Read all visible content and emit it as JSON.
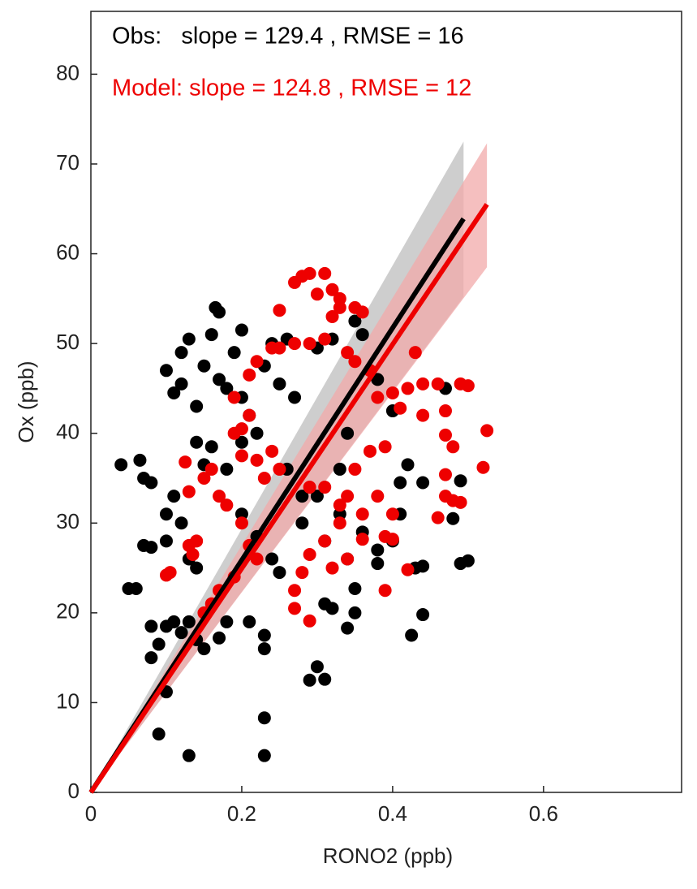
{
  "chart_data": {
    "type": "scatter",
    "xlabel": "RONO2 (ppb)",
    "ylabel": "Ox (ppb)",
    "annotations": [
      {
        "text": "Obs:   slope = 129.4 , RMSE = 16",
        "color": "#000000"
      },
      {
        "text": "Model: slope = 124.8 , RMSE = 12",
        "color": "#ee0000"
      }
    ],
    "xlim": [
      0,
      0.783
    ],
    "ylim": [
      0,
      87
    ],
    "xticks": [
      0,
      0.2,
      0.4,
      0.6
    ],
    "yticks": [
      0,
      10,
      20,
      30,
      40,
      50,
      60,
      70,
      80
    ],
    "grid": false,
    "series": [
      {
        "color": "#000000",
        "band_color": "#bdbdbd",
        "x": [
          0.04,
          0.065,
          0.07,
          0.08,
          0.05,
          0.06,
          0.07,
          0.08,
          0.08,
          0.08,
          0.09,
          0.1,
          0.09,
          0.13,
          0.1,
          0.11,
          0.12,
          0.13,
          0.15,
          0.14,
          0.17,
          0.18,
          0.1,
          0.11,
          0.12,
          0.1,
          0.13,
          0.14,
          0.1,
          0.11,
          0.12,
          0.13,
          0.12,
          0.14,
          0.15,
          0.16,
          0.17,
          0.165,
          0.2,
          0.19,
          0.17,
          0.18,
          0.2,
          0.21,
          0.14,
          0.15,
          0.16,
          0.18,
          0.2,
          0.22,
          0.2,
          0.22,
          0.24,
          0.25,
          0.23,
          0.24,
          0.26,
          0.25,
          0.27,
          0.21,
          0.23,
          0.23,
          0.23,
          0.23,
          0.29,
          0.3,
          0.31,
          0.31,
          0.32,
          0.34,
          0.35,
          0.35,
          0.34,
          0.36,
          0.38,
          0.38,
          0.4,
          0.41,
          0.42,
          0.41,
          0.43,
          0.44,
          0.425,
          0.44,
          0.48,
          0.49,
          0.49,
          0.5,
          0.44,
          0.47,
          0.34,
          0.36,
          0.35,
          0.3,
          0.32,
          0.26,
          0.28,
          0.3,
          0.33,
          0.28,
          0.31,
          0.33,
          0.4,
          0.38
        ],
        "values": [
          36.5,
          37,
          35,
          34.5,
          22.7,
          22.7,
          27.5,
          27.3,
          18.5,
          15,
          16.5,
          11.2,
          6.5,
          4.1,
          18.5,
          19,
          17.8,
          19,
          16,
          17,
          17.2,
          19,
          31,
          33,
          30,
          28,
          26,
          25,
          47,
          44.5,
          49,
          50.5,
          45.5,
          43,
          47.5,
          51,
          53.5,
          54,
          51.5,
          49,
          46,
          45,
          44,
          42,
          39,
          36.5,
          38.5,
          36,
          39,
          40,
          31,
          28.5,
          26,
          24.5,
          47.5,
          50,
          50.5,
          45.5,
          44,
          19,
          16,
          17.5,
          8.3,
          4.1,
          12.5,
          14,
          12.6,
          21,
          20.5,
          18.3,
          20,
          22.7,
          26,
          29,
          25.5,
          27,
          28,
          34.5,
          36.5,
          31,
          25,
          19.8,
          17.5,
          25.2,
          30.5,
          34.7,
          25.5,
          25.8,
          34.5,
          45,
          40,
          51,
          52.5,
          49.5,
          50.5,
          36,
          33,
          33,
          36,
          30,
          28,
          31,
          42.5,
          46
        ],
        "fit": {
          "x": [
            0,
            0.494
          ],
          "y": [
            0,
            63.9
          ],
          "lower": [
            0,
            55.2
          ],
          "upper": [
            0,
            72.5
          ]
        }
      },
      {
        "color": "#ee0000",
        "band_color": "#f2a9a9",
        "x": [
          0.1,
          0.105,
          0.13,
          0.135,
          0.14,
          0.125,
          0.13,
          0.15,
          0.16,
          0.17,
          0.18,
          0.19,
          0.2,
          0.21,
          0.2,
          0.22,
          0.23,
          0.24,
          0.25,
          0.2,
          0.21,
          0.22,
          0.19,
          0.17,
          0.16,
          0.15,
          0.19,
          0.21,
          0.22,
          0.24,
          0.25,
          0.25,
          0.27,
          0.29,
          0.31,
          0.32,
          0.33,
          0.35,
          0.36,
          0.27,
          0.28,
          0.29,
          0.31,
          0.32,
          0.33,
          0.3,
          0.34,
          0.35,
          0.37,
          0.38,
          0.4,
          0.42,
          0.44,
          0.46,
          0.49,
          0.5,
          0.43,
          0.44,
          0.47,
          0.37,
          0.39,
          0.35,
          0.34,
          0.33,
          0.31,
          0.29,
          0.28,
          0.27,
          0.27,
          0.29,
          0.32,
          0.34,
          0.36,
          0.39,
          0.4,
          0.39,
          0.42,
          0.38,
          0.4,
          0.46,
          0.47,
          0.48,
          0.49,
          0.47,
          0.47,
          0.48,
          0.52,
          0.525,
          0.29,
          0.31,
          0.33,
          0.36,
          0.41
        ],
        "values": [
          24.2,
          24.5,
          27.5,
          26.5,
          28,
          36.8,
          33.5,
          35,
          36,
          33,
          32,
          40,
          40.5,
          42,
          37.5,
          37,
          35,
          38,
          36,
          30,
          27.5,
          26,
          24,
          22.5,
          21,
          20,
          44,
          46.5,
          48,
          49.5,
          49.5,
          53.7,
          50,
          50,
          50.5,
          53,
          54,
          54,
          53.5,
          56.8,
          57.5,
          57.8,
          57.8,
          56,
          55,
          55.5,
          49,
          48,
          47,
          44,
          44.5,
          45,
          45.5,
          45.5,
          45.5,
          45.3,
          49,
          42,
          42.5,
          38,
          38.5,
          36,
          33,
          30,
          28,
          26.5,
          24.5,
          22.5,
          20.5,
          19.1,
          25,
          26,
          28.2,
          28.5,
          28.2,
          22.5,
          24.8,
          33,
          31,
          30.6,
          33,
          32.5,
          32.3,
          35.4,
          39.8,
          38.5,
          36.2,
          40.3,
          34,
          34,
          32,
          31,
          42.8
        ],
        "fit": {
          "x": [
            0,
            0.525
          ],
          "y": [
            0,
            65.5
          ],
          "lower": [
            0,
            58.5
          ],
          "upper": [
            0,
            72.3
          ]
        }
      }
    ]
  }
}
